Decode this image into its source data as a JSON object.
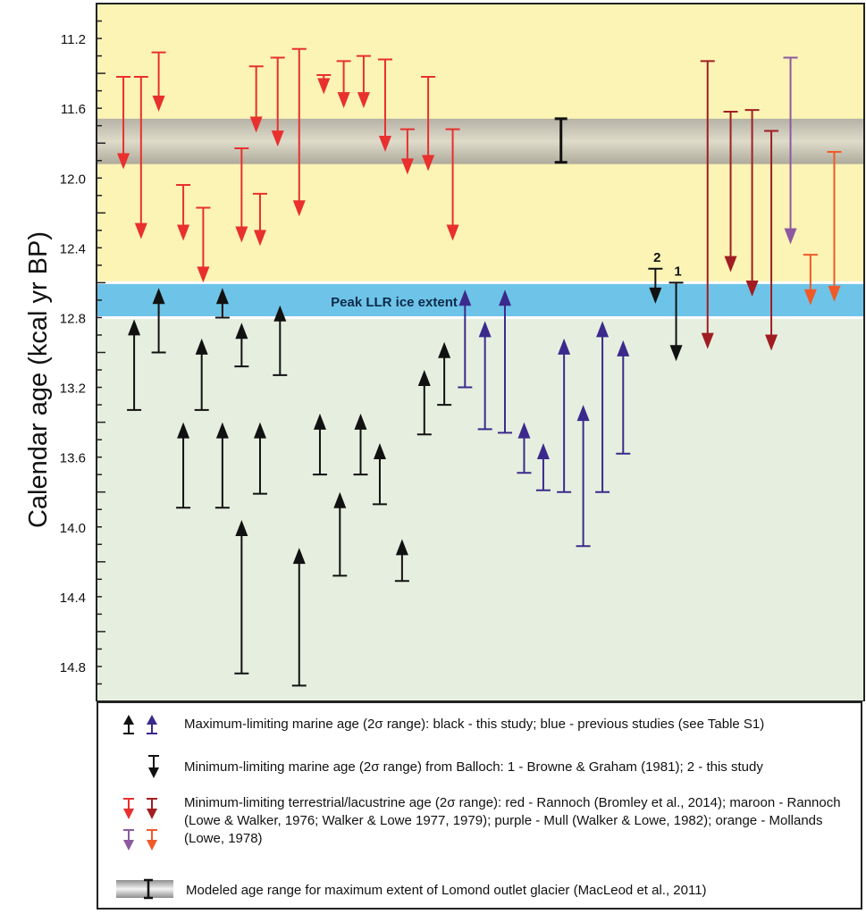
{
  "chart_data": {
    "type": "range-arrows",
    "ylabel": "Calendar age  (kcal yr BP)",
    "yticks": [
      "11.2",
      "11.6",
      "12.0",
      "12.4",
      "12.8",
      "13.2",
      "13.6",
      "14.0",
      "14.4",
      "14.8"
    ],
    "ylim": [
      11.0,
      15.0
    ],
    "y_inverted": true,
    "bands": [
      {
        "name": "yellow",
        "from": 11.0,
        "to": 12.6,
        "color": "#fcf4b4"
      },
      {
        "name": "grey",
        "from": 11.66,
        "to": 11.92,
        "color": "#c9c6b8"
      },
      {
        "name": "peak",
        "from": 12.6,
        "to": 12.8,
        "color": "#6ec4e8"
      },
      {
        "name": "green",
        "from": 12.8,
        "to": 15.0,
        "color": "#e6efdf"
      }
    ],
    "band_label": "Peak LLR ice extent",
    "modeled_range": {
      "x": 0.605,
      "from": 11.66,
      "to": 11.91
    },
    "colors": {
      "red": "#e8302e",
      "maroon": "#a01e22",
      "purple": "#8b5aa0",
      "orange": "#f05a28",
      "black": "#111111",
      "blue": "#3b2a8c"
    },
    "series": [
      {
        "category": "Minimum-limiting terrestrial/lacustrine age",
        "color": "red",
        "direction": "down",
        "points": [
          {
            "x": 0.035,
            "from": 11.42,
            "to": 11.95
          },
          {
            "x": 0.058,
            "from": 11.42,
            "to": 12.35
          },
          {
            "x": 0.081,
            "from": 11.28,
            "to": 11.62
          },
          {
            "x": 0.113,
            "from": 12.04,
            "to": 12.36
          },
          {
            "x": 0.139,
            "from": 12.17,
            "to": 12.6
          },
          {
            "x": 0.189,
            "from": 11.83,
            "to": 12.37
          },
          {
            "x": 0.208,
            "from": 11.36,
            "to": 11.74
          },
          {
            "x": 0.213,
            "from": 12.09,
            "to": 12.39
          },
          {
            "x": 0.236,
            "from": 11.31,
            "to": 11.82
          },
          {
            "x": 0.264,
            "from": 11.26,
            "to": 12.22
          },
          {
            "x": 0.296,
            "from": 11.41,
            "to": 11.52
          },
          {
            "x": 0.322,
            "from": 11.33,
            "to": 11.6
          },
          {
            "x": 0.348,
            "from": 11.3,
            "to": 11.6
          },
          {
            "x": 0.376,
            "from": 11.32,
            "to": 11.85
          },
          {
            "x": 0.405,
            "from": 11.72,
            "to": 11.98
          },
          {
            "x": 0.432,
            "from": 11.42,
            "to": 11.96
          },
          {
            "x": 0.464,
            "from": 11.72,
            "to": 12.36
          }
        ]
      },
      {
        "category": "Minimum-limiting terrestrial/lacustrine age",
        "color": "maroon",
        "direction": "down",
        "points": [
          {
            "x": 0.796,
            "from": 11.33,
            "to": 12.98
          },
          {
            "x": 0.826,
            "from": 11.62,
            "to": 12.54
          },
          {
            "x": 0.854,
            "from": 11.61,
            "to": 12.68
          },
          {
            "x": 0.879,
            "from": 11.73,
            "to": 12.99
          }
        ]
      },
      {
        "category": "Minimum-limiting terrestrial/lacustrine age",
        "color": "purple",
        "direction": "down",
        "points": [
          {
            "x": 0.904,
            "from": 11.31,
            "to": 12.38
          }
        ]
      },
      {
        "category": "Minimum-limiting terrestrial/lacustrine age",
        "color": "orange",
        "direction": "down",
        "points": [
          {
            "x": 0.93,
            "from": 12.44,
            "to": 12.73
          },
          {
            "x": 0.961,
            "from": 11.85,
            "to": 12.71
          }
        ]
      },
      {
        "category": "Minimum-limiting marine age from Balloch",
        "color": "black",
        "direction": "down",
        "points": [
          {
            "x": 0.728,
            "from": 12.52,
            "to": 12.72,
            "label": "2"
          },
          {
            "x": 0.755,
            "from": 12.6,
            "to": 13.05,
            "label": "1"
          }
        ]
      },
      {
        "category": "Maximum-limiting marine age",
        "color": "black",
        "direction": "up",
        "points": [
          {
            "x": 0.049,
            "from": 12.81,
            "to": 13.33
          },
          {
            "x": 0.081,
            "from": 12.63,
            "to": 13.0
          },
          {
            "x": 0.113,
            "from": 13.4,
            "to": 13.89
          },
          {
            "x": 0.137,
            "from": 12.92,
            "to": 13.33
          },
          {
            "x": 0.164,
            "from": 13.4,
            "to": 13.89
          },
          {
            "x": 0.164,
            "from": 12.63,
            "to": 12.8
          },
          {
            "x": 0.189,
            "from": 12.83,
            "to": 13.08
          },
          {
            "x": 0.189,
            "from": 13.96,
            "to": 14.84
          },
          {
            "x": 0.213,
            "from": 13.4,
            "to": 13.81
          },
          {
            "x": 0.239,
            "from": 12.73,
            "to": 13.13
          },
          {
            "x": 0.264,
            "from": 14.12,
            "to": 14.91
          },
          {
            "x": 0.291,
            "from": 13.35,
            "to": 13.7
          },
          {
            "x": 0.317,
            "from": 13.8,
            "to": 14.28
          },
          {
            "x": 0.344,
            "from": 13.35,
            "to": 13.7
          },
          {
            "x": 0.369,
            "from": 13.52,
            "to": 13.87
          },
          {
            "x": 0.398,
            "from": 14.07,
            "to": 14.31
          },
          {
            "x": 0.427,
            "from": 13.1,
            "to": 13.47
          },
          {
            "x": 0.453,
            "from": 12.94,
            "to": 13.3
          }
        ]
      },
      {
        "category": "Maximum-limiting marine age",
        "color": "blue",
        "direction": "up",
        "points": [
          {
            "x": 0.48,
            "from": 12.64,
            "to": 13.2
          },
          {
            "x": 0.506,
            "from": 12.82,
            "to": 13.44
          },
          {
            "x": 0.532,
            "from": 12.64,
            "to": 13.46
          },
          {
            "x": 0.557,
            "from": 13.4,
            "to": 13.69
          },
          {
            "x": 0.582,
            "from": 13.52,
            "to": 13.79
          },
          {
            "x": 0.609,
            "from": 12.92,
            "to": 13.8
          },
          {
            "x": 0.634,
            "from": 13.3,
            "to": 14.11
          },
          {
            "x": 0.659,
            "from": 12.82,
            "to": 13.8
          },
          {
            "x": 0.686,
            "from": 12.93,
            "to": 13.58
          }
        ]
      }
    ]
  },
  "legend": {
    "max_marine": "Maximum-limiting marine age (2σ range): black - this study; blue - previous studies (see Table S1)",
    "min_marine": "Minimum-limiting marine age (2σ range) from Balloch: 1 - Browne & Graham (1981); 2 - this study",
    "min_terrestrial": "Minimum-limiting terrestrial/lacustrine age (2σ range): red - Rannoch (Bromley et al., 2014); maroon - Rannoch (Lowe & Walker, 1976; Walker & Lowe 1977, 1979); purple - Mull (Walker & Lowe, 1982); orange - Mollands (Lowe, 1978)",
    "modeled": "Modeled age range for maximum extent of Lomond outlet glacier (MacLeod et al., 2011)"
  }
}
